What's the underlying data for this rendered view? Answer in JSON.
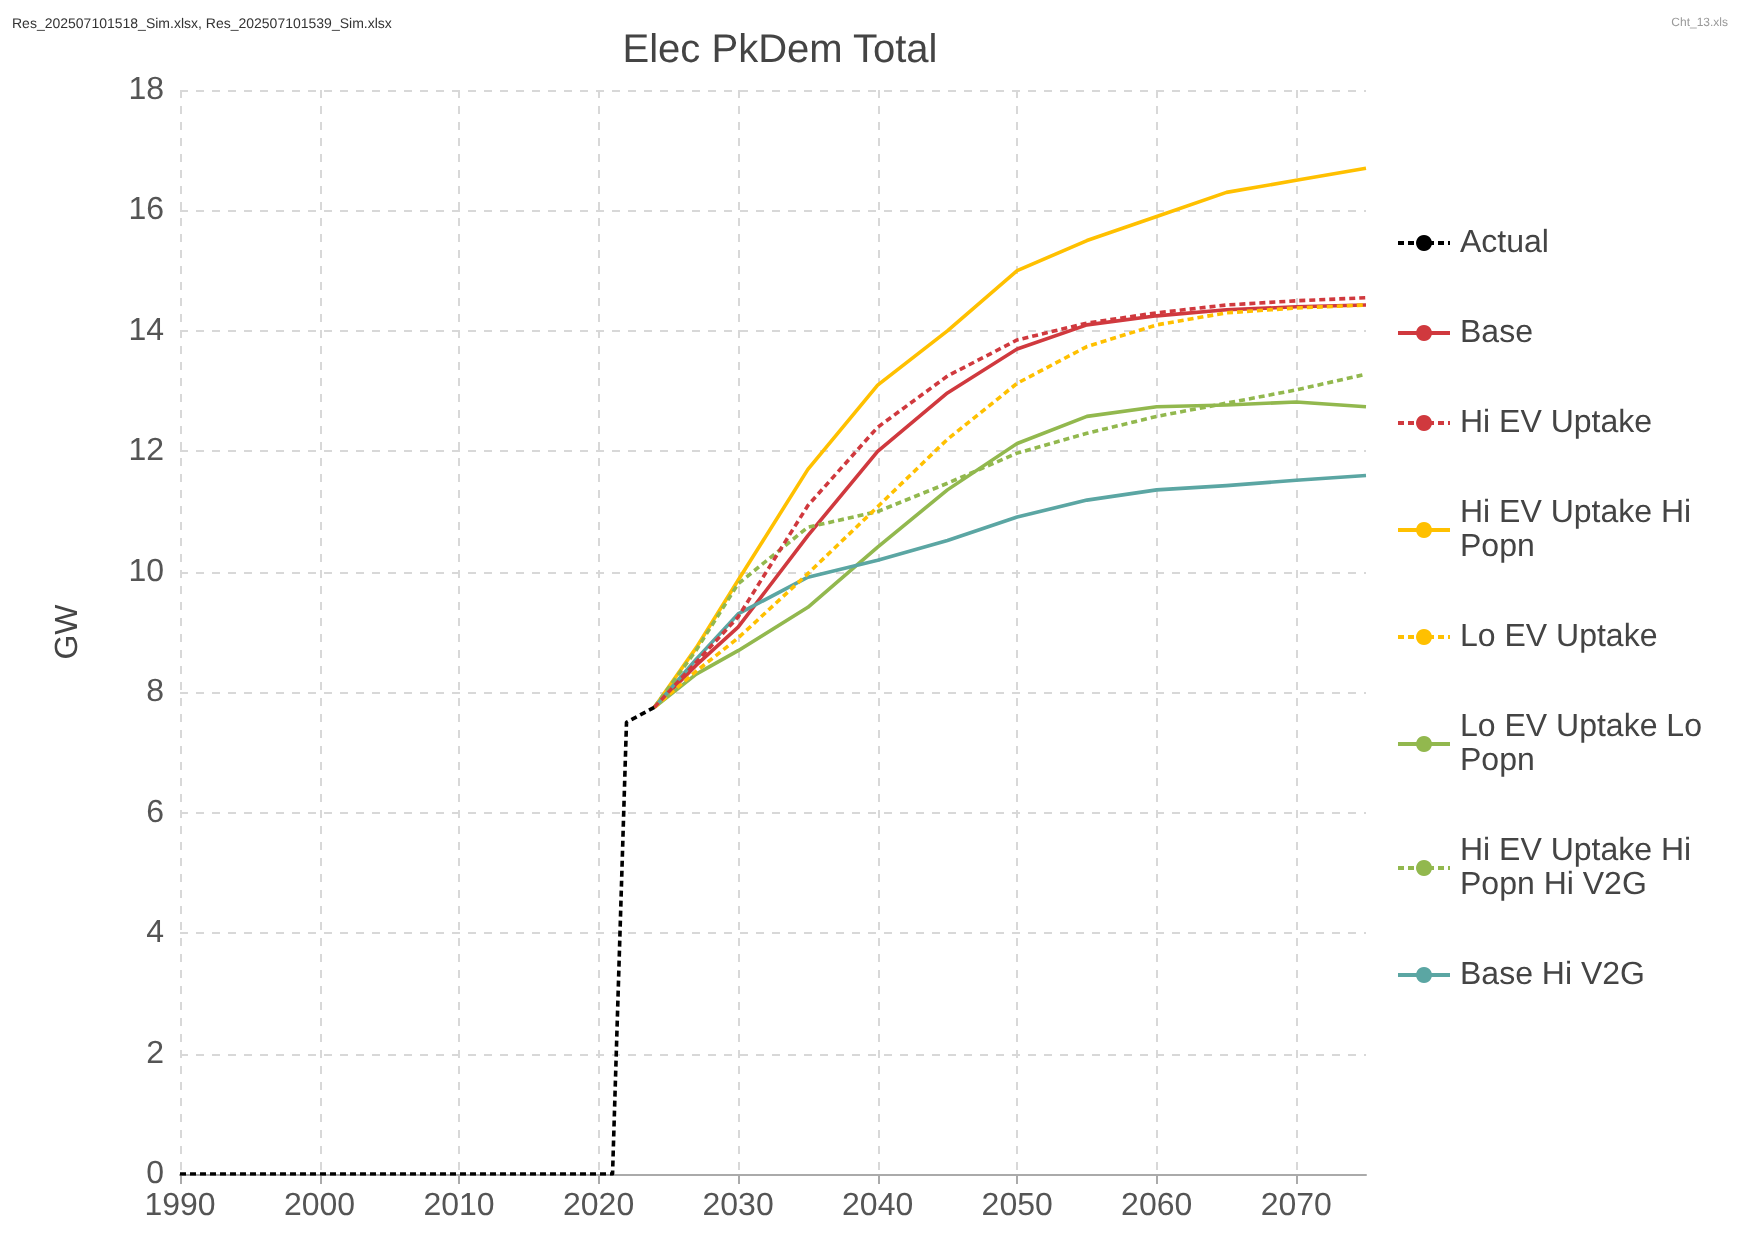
{
  "chart_data": {
    "type": "line",
    "title": "Elec PkDem Total",
    "ylabel": "GW",
    "annotations": [
      "Res_202507101518_Sim.xlsx, Res_202507101539_Sim.xlsx",
      "Cht_13.xls"
    ],
    "xlim": [
      1990,
      2075
    ],
    "xticks": [
      1990,
      2000,
      2010,
      2020,
      2030,
      2040,
      2050,
      2060,
      2070
    ],
    "ylim": [
      0,
      18
    ],
    "yticks": [
      0,
      2,
      4,
      6,
      8,
      10,
      12,
      14,
      16,
      18
    ],
    "grid": true,
    "legend": "right",
    "marker": "none",
    "x": [
      2024,
      2027,
      2030,
      2035,
      2040,
      2045,
      2050,
      2055,
      2060,
      2065,
      2070,
      2075
    ],
    "series": [
      {
        "name": "Actual",
        "color": "#000000",
        "line_style": "dashed",
        "x": [
          1990,
          2021,
          2022,
          2024
        ],
        "values": [
          0,
          0,
          7.5,
          7.75
        ]
      },
      {
        "name": "Base",
        "color": "#d0393e",
        "line_style": "solid",
        "values": [
          7.75,
          8.45,
          9.08,
          10.6,
          12.0,
          12.97,
          13.7,
          14.1,
          14.25,
          14.35,
          14.4,
          14.43
        ]
      },
      {
        "name": "Hi EV Uptake",
        "color": "#d0393e",
        "line_style": "dashed",
        "values": [
          7.75,
          8.5,
          9.25,
          11.1,
          12.4,
          13.25,
          13.85,
          14.13,
          14.3,
          14.43,
          14.5,
          14.55
        ]
      },
      {
        "name": "Hi EV Uptake Hi Popn",
        "color": "#ffc000",
        "line_style": "solid",
        "values": [
          7.75,
          8.74,
          9.86,
          11.7,
          13.1,
          14.0,
          15.0,
          15.5,
          15.9,
          16.3,
          16.5,
          16.7
        ]
      },
      {
        "name": "Lo EV Uptake",
        "color": "#ffc000",
        "line_style": "dashed",
        "values": [
          7.75,
          8.35,
          8.9,
          9.97,
          11.08,
          12.2,
          13.13,
          13.74,
          14.1,
          14.3,
          14.38,
          14.43
        ]
      },
      {
        "name": "Lo EV Uptake Lo Popn",
        "color": "#92b84e",
        "line_style": "solid",
        "values": [
          7.75,
          8.3,
          8.69,
          9.41,
          10.41,
          11.36,
          12.13,
          12.58,
          12.74,
          12.77,
          12.82,
          12.74
        ]
      },
      {
        "name": "Hi EV Uptake Hi Popn Hi V2G",
        "color": "#92b84e",
        "line_style": "dashed",
        "values": [
          7.75,
          8.7,
          9.8,
          10.74,
          11.0,
          11.47,
          11.97,
          12.3,
          12.58,
          12.8,
          13.02,
          13.28
        ]
      },
      {
        "name": "Base Hi V2G",
        "color": "#5ba6a3",
        "line_style": "solid",
        "values": [
          7.75,
          8.55,
          9.3,
          9.91,
          10.19,
          10.52,
          10.91,
          11.19,
          11.36,
          11.43,
          11.52,
          11.6
        ]
      }
    ]
  }
}
